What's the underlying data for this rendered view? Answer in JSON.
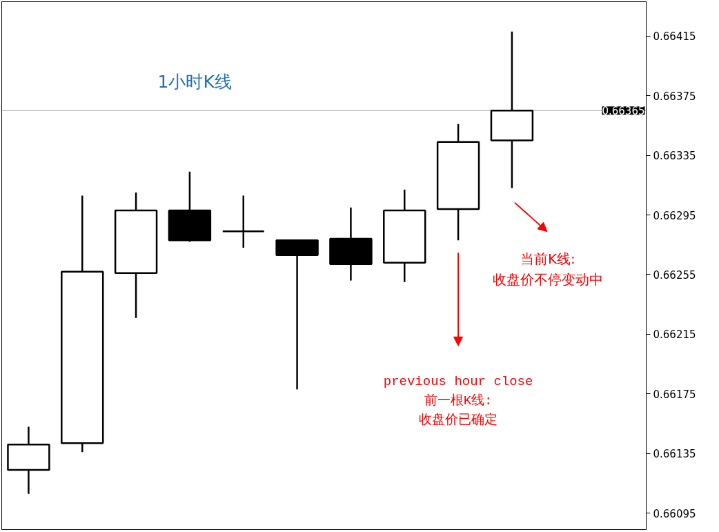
{
  "chart_data": {
    "type": "candlestick",
    "title": "1小时K线",
    "categories": [
      null,
      null,
      null,
      null,
      null,
      null,
      null,
      null,
      null,
      null,
      null,
      null
    ],
    "ohlc": [
      [
        0.66124,
        0.66153,
        0.66108,
        0.66141
      ],
      [
        0.66142,
        0.66308,
        0.66136,
        0.66257
      ],
      [
        0.66256,
        0.6631,
        0.66226,
        0.66298
      ],
      [
        0.66298,
        0.66324,
        0.66277,
        0.66278
      ],
      [
        0.66284,
        0.66308,
        0.66273,
        0.66284
      ],
      [
        0.66278,
        0.66278,
        0.66178,
        0.66268
      ],
      [
        0.66279,
        0.663,
        0.66251,
        0.66262
      ],
      [
        0.66263,
        0.66312,
        0.6625,
        0.66298
      ],
      [
        0.66299,
        0.66356,
        0.66278,
        0.66344
      ],
      [
        0.66345,
        0.66418,
        0.66313,
        0.66365
      ],
      null,
      null
    ],
    "color": "#000000",
    "ylim": [
      0.66084,
      0.66438
    ],
    "yticks": [
      0.66095,
      0.66135,
      0.66175,
      0.66215,
      0.66255,
      0.66295,
      0.66335,
      0.66375,
      0.66415
    ],
    "tick_labels": "y",
    "ref_lines": [
      {
        "axis": "y",
        "value": 0.66365,
        "label": "0.66365",
        "color": "#c0c0c0"
      }
    ],
    "annotations": [
      "当前K线:\n收盘价不停变动中",
      "previous hour close\n前一根K线:\n收盘价已确定"
    ]
  }
}
